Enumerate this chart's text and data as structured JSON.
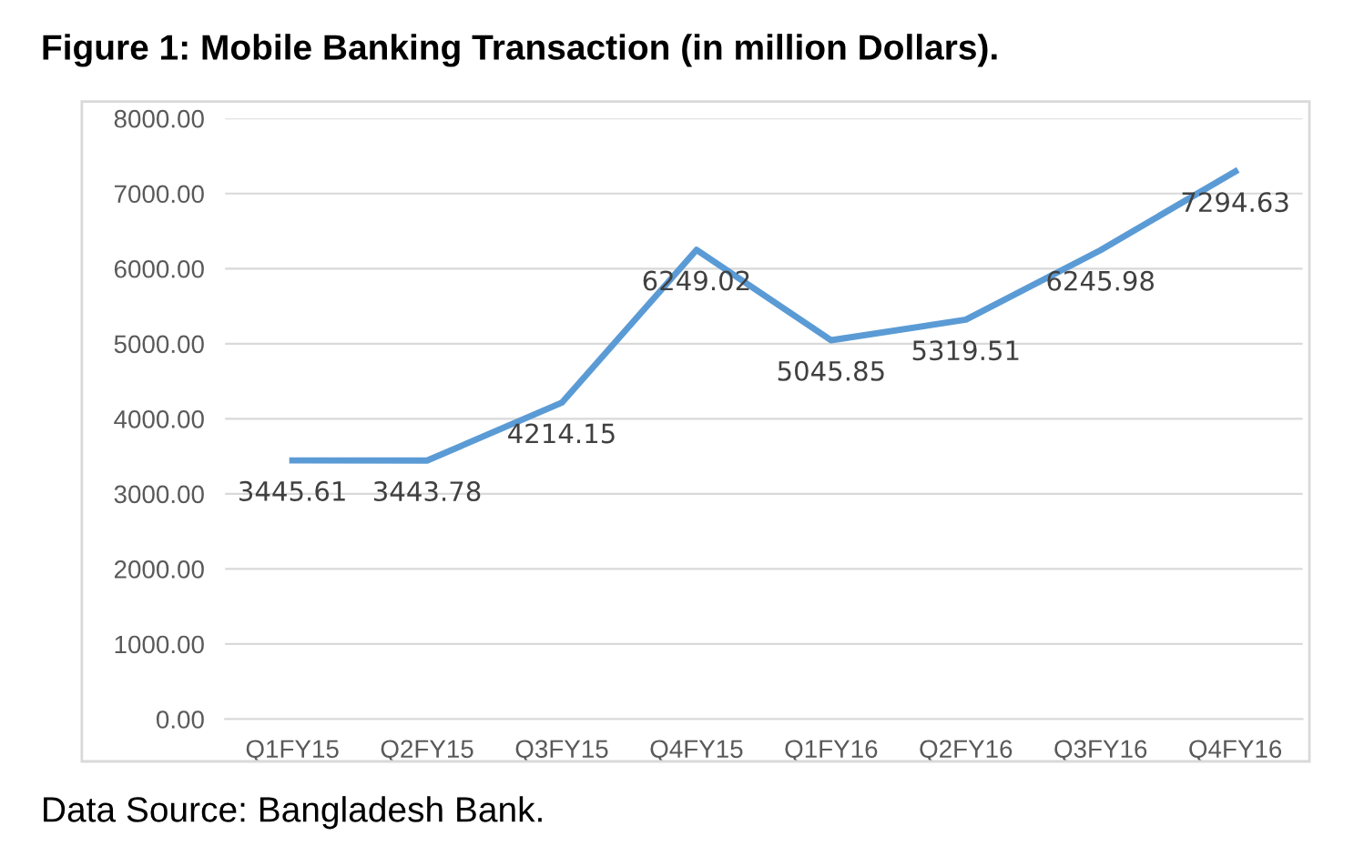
{
  "chart_data": {
    "type": "line",
    "title": "Figure 1: Mobile Banking Transaction (in million Dollars).",
    "categories": [
      "Q1FY15",
      "Q2FY15",
      "Q3FY15",
      "Q4FY15",
      "Q1FY16",
      "Q2FY16",
      "Q3FY16",
      "Q4FY16"
    ],
    "series": [
      {
        "color": "#5b9bd5",
        "values": [
          3445.61,
          3443.78,
          4214.15,
          6249.02,
          5045.85,
          5319.51,
          6245.98,
          7294.63
        ]
      }
    ],
    "data_labels": true,
    "ylim": [
      0,
      8000
    ],
    "yticks": [
      {
        "value": 0,
        "label": "0.00"
      },
      {
        "value": 1000,
        "label": "1000.00"
      },
      {
        "value": 2000,
        "label": "2000.00"
      },
      {
        "value": 3000,
        "label": "3000.00"
      },
      {
        "value": 4000,
        "label": "4000.00"
      },
      {
        "value": 5000,
        "label": "5000.00"
      },
      {
        "value": 6000,
        "label": "6000.00"
      },
      {
        "value": 7000,
        "label": "7000.00"
      },
      {
        "value": 8000,
        "label": "8000.00"
      }
    ],
    "grid": "y",
    "legend": false,
    "marker": "none",
    "line_style": "solid",
    "annotations": [
      "Data Source: Bangladesh Bank."
    ]
  }
}
